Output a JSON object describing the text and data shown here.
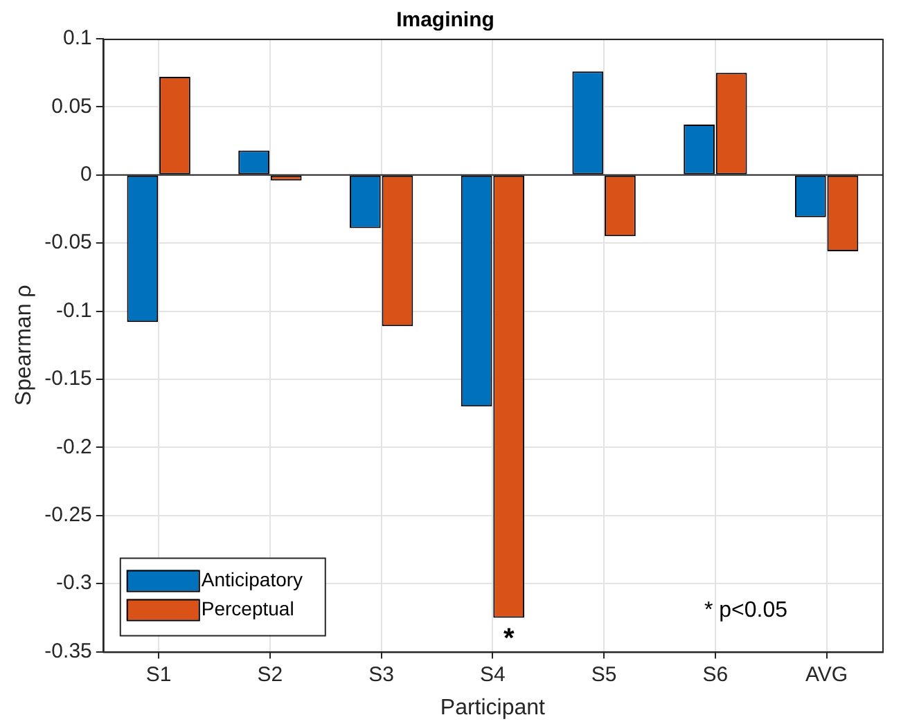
{
  "chart_data": {
    "type": "bar",
    "title": "Imagining",
    "xlabel": "Participant",
    "ylabel": "Spearman ρ",
    "categories": [
      "S1",
      "S2",
      "S3",
      "S4",
      "S5",
      "S6",
      "AVG"
    ],
    "series": [
      {
        "name": "Anticipatory",
        "color": "#0072bd",
        "values": [
          -0.108,
          0.018,
          -0.039,
          -0.17,
          0.076,
          0.037,
          -0.031
        ]
      },
      {
        "name": "Perceptual",
        "color": "#d95319",
        "values": [
          0.072,
          -0.004,
          -0.111,
          -0.325,
          -0.045,
          0.075,
          -0.056
        ]
      }
    ],
    "ylim": [
      -0.35,
      0.1
    ],
    "yticks": [
      -0.35,
      -0.3,
      -0.25,
      -0.2,
      -0.15,
      -0.1,
      -0.05,
      0,
      0.05,
      0.1
    ],
    "grid": true,
    "legend": "bottom left",
    "annotations": [
      "*",
      "* p<0.05"
    ]
  }
}
